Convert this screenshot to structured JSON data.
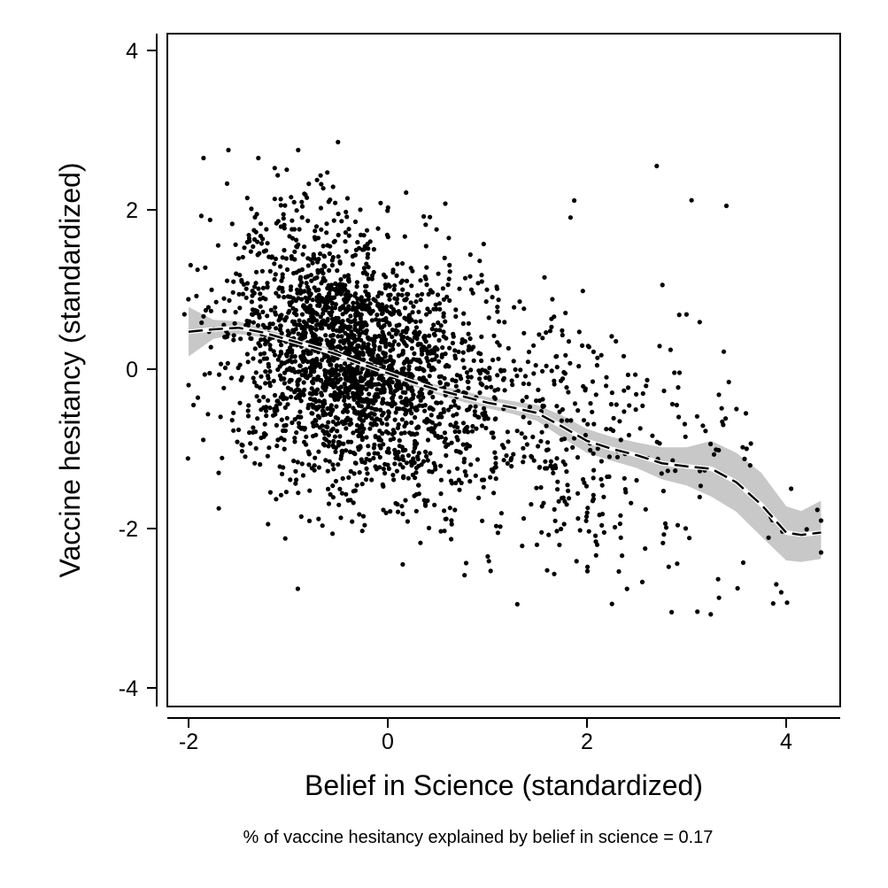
{
  "chart_data": {
    "type": "scatter",
    "title": "",
    "xlabel": "Belief in Science (standardized)",
    "ylabel": "Vaccine hesitancy (standardized)",
    "note": "% of vaccine hesitancy explained by belief in science = 0.17",
    "xlim": [
      -2.2,
      4.55
    ],
    "ylim": [
      -4.25,
      4.2
    ],
    "x_ticks": [
      -2,
      0,
      2,
      4
    ],
    "y_ticks": [
      -4,
      -2,
      0,
      2,
      4
    ],
    "x_tick_labels": [
      "-2",
      "0",
      "2",
      "4"
    ],
    "y_tick_labels": [
      "-4",
      "-2",
      "0",
      "2",
      "4"
    ],
    "grid": false,
    "scatter": {
      "color": "#000000",
      "point_count": 2800,
      "description_points": [
        [
          -1.85,
          2.65
        ],
        [
          -1.6,
          2.75
        ],
        [
          -1.3,
          2.65
        ],
        [
          -0.9,
          2.75
        ],
        [
          -0.5,
          2.85
        ],
        [
          -2.0,
          -0.2
        ],
        [
          -1.95,
          -0.45
        ],
        [
          2.7,
          2.55
        ],
        [
          3.05,
          2.12
        ],
        [
          3.4,
          2.05
        ],
        [
          2.85,
          -3.05
        ],
        [
          1.3,
          -2.95
        ],
        [
          0.15,
          -2.45
        ],
        [
          4.35,
          -1.9
        ],
        [
          4.35,
          -2.3
        ],
        [
          3.95,
          -2.8
        ],
        [
          3.9,
          -2.7
        ],
        [
          4.05,
          -1.5
        ],
        [
          3.5,
          -0.5
        ]
      ]
    },
    "smooth_line": {
      "style": "dashed",
      "color": "#000000",
      "x": [
        -2.0,
        -1.75,
        -1.5,
        -1.25,
        -1.0,
        -0.75,
        -0.5,
        -0.25,
        0.0,
        0.25,
        0.5,
        0.75,
        1.0,
        1.25,
        1.5,
        1.75,
        2.0,
        2.25,
        2.5,
        2.75,
        3.0,
        3.25,
        3.5,
        3.75,
        4.0,
        4.15,
        4.35
      ],
      "y": [
        0.47,
        0.5,
        0.52,
        0.46,
        0.37,
        0.28,
        0.18,
        0.06,
        -0.05,
        -0.16,
        -0.26,
        -0.34,
        -0.42,
        -0.48,
        -0.55,
        -0.72,
        -0.9,
        -1.0,
        -1.08,
        -1.18,
        -1.22,
        -1.25,
        -1.42,
        -1.7,
        -2.05,
        -2.08,
        -2.05
      ]
    },
    "confidence_band": {
      "color": "#c8c8c8",
      "x": [
        -2.0,
        -1.75,
        -1.5,
        -1.25,
        -1.0,
        -0.75,
        -0.5,
        -0.25,
        0.0,
        0.25,
        0.5,
        0.75,
        1.0,
        1.25,
        1.5,
        1.75,
        2.0,
        2.25,
        2.5,
        2.75,
        3.0,
        3.25,
        3.5,
        3.75,
        4.0,
        4.15,
        4.35
      ],
      "upper": [
        0.78,
        0.62,
        0.6,
        0.52,
        0.42,
        0.33,
        0.23,
        0.1,
        -0.01,
        -0.11,
        -0.2,
        -0.27,
        -0.35,
        -0.4,
        -0.45,
        -0.58,
        -0.75,
        -0.85,
        -0.92,
        -0.98,
        -0.98,
        -0.9,
        -1.05,
        -1.3,
        -1.72,
        -1.78,
        -1.65
      ],
      "lower": [
        0.16,
        0.38,
        0.44,
        0.4,
        0.32,
        0.23,
        0.13,
        0.02,
        -0.09,
        -0.21,
        -0.32,
        -0.41,
        -0.49,
        -0.56,
        -0.65,
        -0.86,
        -1.05,
        -1.15,
        -1.24,
        -1.38,
        -1.46,
        -1.6,
        -1.79,
        -2.1,
        -2.4,
        -2.42,
        -2.38
      ]
    }
  }
}
